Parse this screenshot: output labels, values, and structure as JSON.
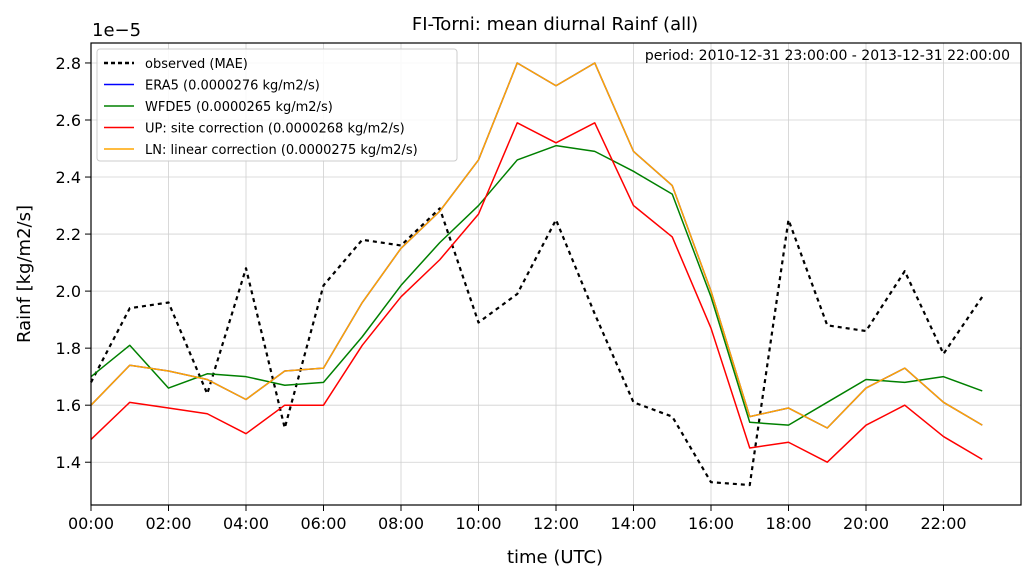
{
  "chart_data": {
    "type": "line",
    "title": "FI-Torni: mean diurnal Rainf (all)",
    "annotation": "period: 2010-12-31 23:00:00 - 2013-12-31 22:00:00",
    "xlabel": "time (UTC)",
    "ylabel": "Rainf [kg/m2/s]",
    "y_offset_label": "1e−5",
    "x": [
      0,
      1,
      2,
      3,
      4,
      5,
      6,
      7,
      8,
      9,
      10,
      11,
      12,
      13,
      14,
      15,
      16,
      17,
      18,
      19,
      20,
      21,
      22,
      23
    ],
    "xlim": [
      0,
      24
    ],
    "ylim": [
      1.25,
      2.87
    ],
    "x_ticks": [
      0,
      2,
      4,
      6,
      8,
      10,
      12,
      14,
      16,
      18,
      20,
      22
    ],
    "x_tick_labels": [
      "00:00",
      "02:00",
      "04:00",
      "06:00",
      "08:00",
      "10:00",
      "12:00",
      "14:00",
      "16:00",
      "18:00",
      "20:00",
      "22:00"
    ],
    "y_ticks": [
      1.4,
      1.6,
      1.8,
      2.0,
      2.2,
      2.4,
      2.6,
      2.8
    ],
    "y_tick_labels": [
      "1.4",
      "1.6",
      "1.8",
      "2.0",
      "2.2",
      "2.4",
      "2.6",
      "2.8"
    ],
    "grid": true,
    "legend_position": "top-left",
    "series": [
      {
        "name": "observed (MAE)",
        "color": "#000000",
        "dashed": true,
        "values": [
          1.68,
          1.94,
          1.96,
          1.64,
          2.08,
          1.52,
          2.02,
          2.18,
          2.16,
          2.29,
          1.89,
          1.99,
          2.25,
          1.92,
          1.61,
          1.56,
          1.33,
          1.32,
          2.25,
          1.88,
          1.86,
          2.07,
          1.78,
          1.98
        ]
      },
      {
        "name": "ERA5 (0.0000276 kg/m2/s)",
        "color": "#0000ff",
        "dashed": false,
        "values": [
          1.6,
          1.74,
          1.72,
          1.69,
          1.62,
          1.72,
          1.73,
          1.96,
          2.15,
          2.28,
          2.46,
          2.8,
          2.72,
          2.8,
          2.49,
          2.37,
          2.0,
          1.56,
          1.59,
          1.52,
          1.66,
          1.73,
          1.61,
          1.53
        ]
      },
      {
        "name": "WFDE5 (0.0000265 kg/m2/s)",
        "color": "#008000",
        "dashed": false,
        "values": [
          1.7,
          1.81,
          1.66,
          1.71,
          1.7,
          1.67,
          1.68,
          1.84,
          2.02,
          2.17,
          2.3,
          2.46,
          2.51,
          2.49,
          2.42,
          2.34,
          1.98,
          1.54,
          1.53,
          1.61,
          1.69,
          1.68,
          1.7,
          1.65
        ]
      },
      {
        "name": "UP: site correction (0.0000268 kg/m2/s)",
        "color": "#ff0000",
        "dashed": false,
        "values": [
          1.48,
          1.61,
          1.59,
          1.57,
          1.5,
          1.6,
          1.6,
          1.81,
          1.98,
          2.11,
          2.27,
          2.59,
          2.52,
          2.59,
          2.3,
          2.19,
          1.87,
          1.45,
          1.47,
          1.4,
          1.53,
          1.6,
          1.49,
          1.41
        ]
      },
      {
        "name": "LN: linear correction (0.0000275 kg/m2/s)",
        "color": "#ffa500",
        "dashed": false,
        "values": [
          1.6,
          1.74,
          1.72,
          1.69,
          1.62,
          1.72,
          1.73,
          1.96,
          2.15,
          2.28,
          2.46,
          2.8,
          2.72,
          2.8,
          2.49,
          2.37,
          2.0,
          1.56,
          1.59,
          1.52,
          1.66,
          1.73,
          1.61,
          1.53
        ]
      }
    ]
  }
}
